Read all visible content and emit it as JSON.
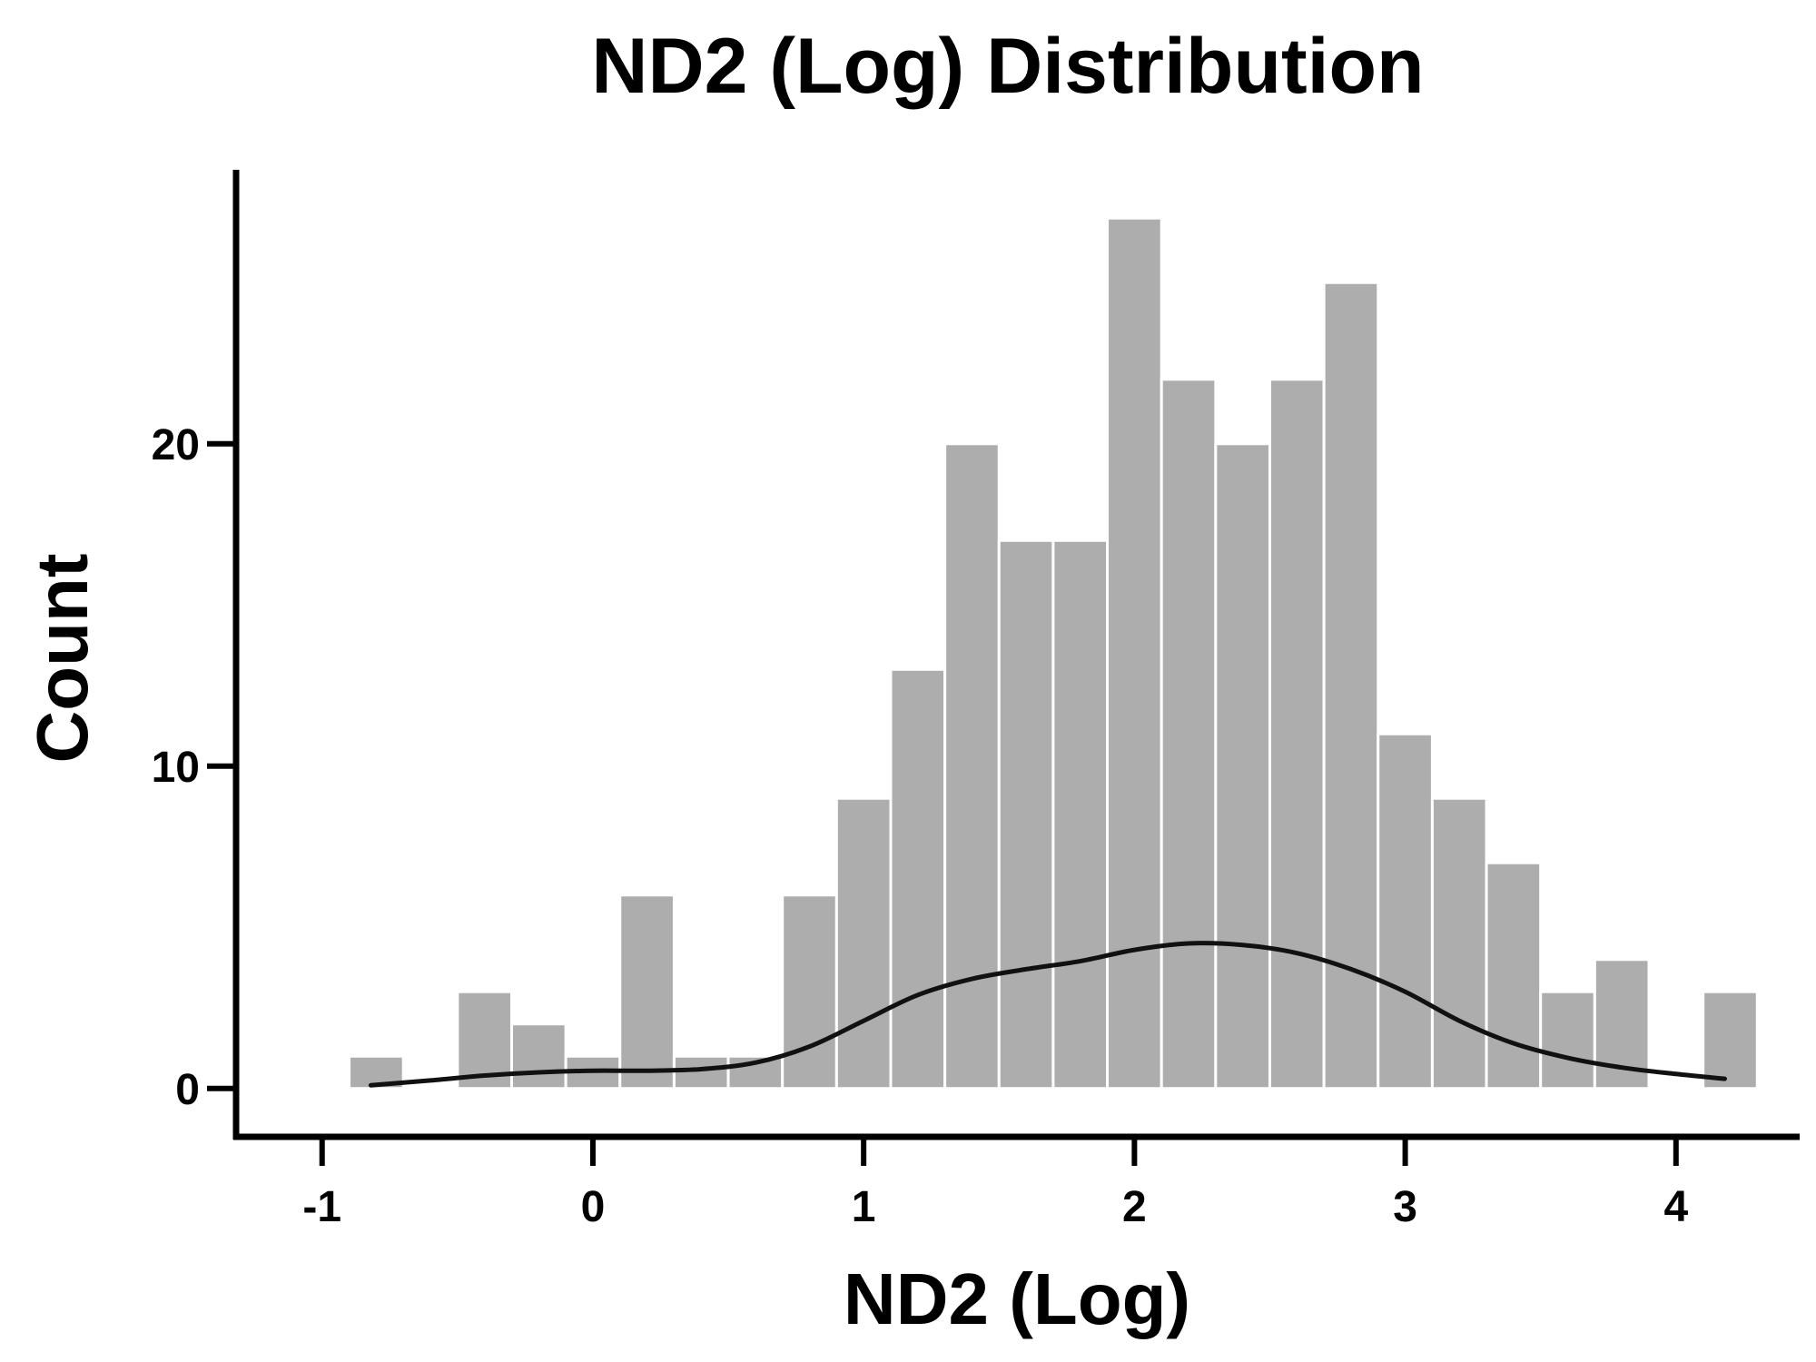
{
  "chart_data": {
    "type": "bar",
    "title": "ND2 (Log) Distribution",
    "xlabel": "ND2 (Log)",
    "ylabel": "Count",
    "xlim": [
      -1.15,
      4.45
    ],
    "ylim": [
      -1.5,
      28.5
    ],
    "xticks": [
      "-1",
      "0",
      "1",
      "2",
      "3",
      "4"
    ],
    "xtick_values": [
      -1,
      0,
      1,
      2,
      3,
      4
    ],
    "yticks": [
      "0",
      "10",
      "20"
    ],
    "ytick_values": [
      0,
      10,
      20
    ],
    "bin_width": 0.2,
    "bins": [
      {
        "x0": -0.9,
        "count": 1
      },
      {
        "x0": -0.7,
        "count": 0
      },
      {
        "x0": -0.5,
        "count": 3
      },
      {
        "x0": -0.3,
        "count": 2
      },
      {
        "x0": -0.1,
        "count": 1
      },
      {
        "x0": 0.1,
        "count": 6
      },
      {
        "x0": 0.3,
        "count": 1
      },
      {
        "x0": 0.5,
        "count": 1
      },
      {
        "x0": 0.7,
        "count": 6
      },
      {
        "x0": 0.9,
        "count": 9
      },
      {
        "x0": 1.1,
        "count": 13
      },
      {
        "x0": 1.3,
        "count": 20
      },
      {
        "x0": 1.5,
        "count": 17
      },
      {
        "x0": 1.7,
        "count": 17
      },
      {
        "x0": 1.9,
        "count": 27
      },
      {
        "x0": 2.1,
        "count": 22
      },
      {
        "x0": 2.3,
        "count": 20
      },
      {
        "x0": 2.5,
        "count": 22
      },
      {
        "x0": 2.7,
        "count": 25
      },
      {
        "x0": 2.9,
        "count": 11
      },
      {
        "x0": 3.1,
        "count": 9
      },
      {
        "x0": 3.3,
        "count": 7
      },
      {
        "x0": 3.5,
        "count": 3
      },
      {
        "x0": 3.7,
        "count": 4
      },
      {
        "x0": 3.9,
        "count": 0
      },
      {
        "x0": 4.1,
        "count": 3
      }
    ],
    "density_curve": {
      "x": [
        -0.82,
        -0.6,
        -0.4,
        -0.2,
        0.0,
        0.2,
        0.4,
        0.6,
        0.8,
        1.0,
        1.2,
        1.4,
        1.6,
        1.8,
        2.0,
        2.2,
        2.4,
        2.6,
        2.8,
        3.0,
        3.2,
        3.4,
        3.6,
        3.8,
        4.0,
        4.18
      ],
      "y": [
        0.1,
        0.25,
        0.4,
        0.5,
        0.55,
        0.55,
        0.6,
        0.8,
        1.3,
        2.1,
        2.9,
        3.4,
        3.7,
        3.95,
        4.3,
        4.5,
        4.45,
        4.2,
        3.7,
        3.0,
        2.1,
        1.4,
        0.95,
        0.65,
        0.45,
        0.3
      ]
    },
    "colors": {
      "bar": "#adadad",
      "curve": "#111111",
      "axis": "#000000"
    },
    "grid": false,
    "legend": "none"
  }
}
